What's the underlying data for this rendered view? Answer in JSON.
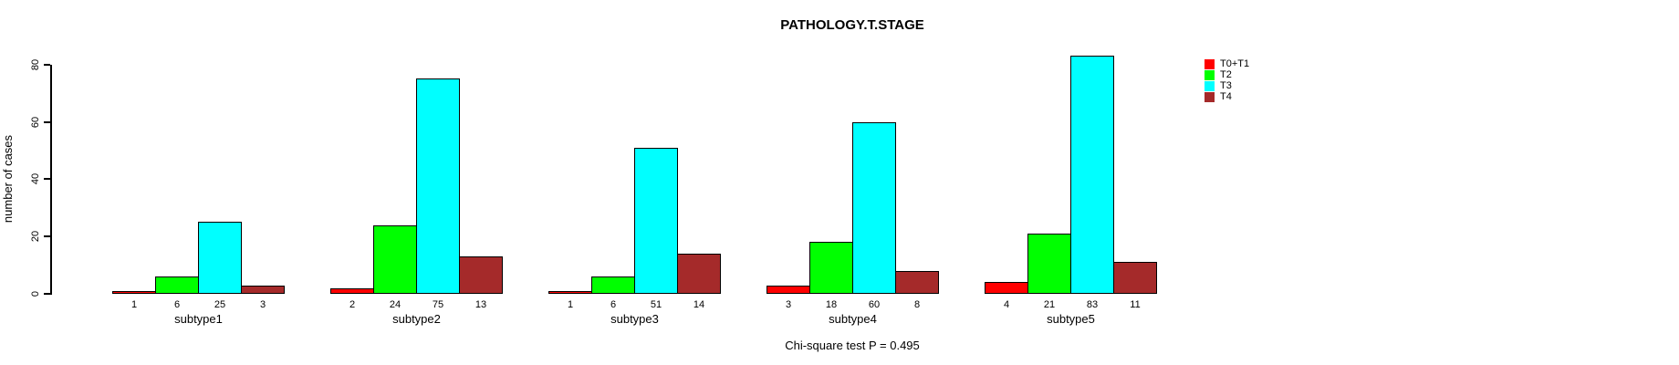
{
  "chart_data": {
    "type": "bar",
    "title": "PATHOLOGY.T.STAGE",
    "ylabel": "number of cases",
    "xlabel": "",
    "annotation": "Chi-square test P = 0.495",
    "categories": [
      "subtype1",
      "subtype2",
      "subtype3",
      "subtype4",
      "subtype5"
    ],
    "series": [
      {
        "name": "T0+T1",
        "color": "#FF0000",
        "values": [
          1,
          2,
          1,
          3,
          4
        ]
      },
      {
        "name": "T2",
        "color": "#00FF00",
        "values": [
          6,
          24,
          6,
          18,
          21
        ]
      },
      {
        "name": "T3",
        "color": "#00FFFF",
        "values": [
          25,
          75,
          51,
          60,
          83
        ]
      },
      {
        "name": "T4",
        "color": "#A52A2A",
        "values": [
          3,
          13,
          14,
          8,
          11
        ]
      }
    ],
    "y_ticks": [
      0,
      20,
      40,
      60,
      80
    ],
    "ylim": [
      0,
      80
    ],
    "bar_value_labels_shown": true,
    "legend_position": "top-right",
    "grid": false,
    "background_color": "#FFFFFF",
    "text_color": "#000000"
  }
}
